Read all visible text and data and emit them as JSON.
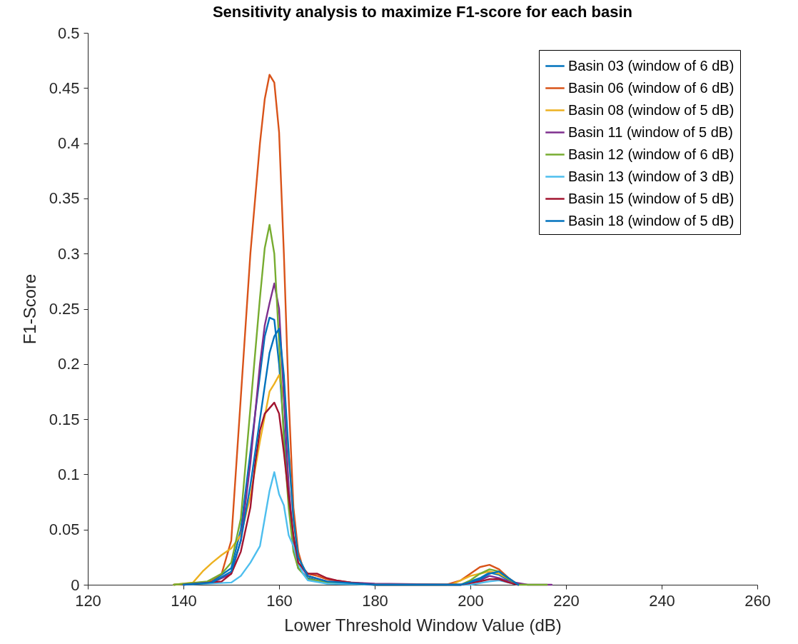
{
  "chart_data": {
    "type": "line",
    "title": "Sensitivity analysis to maximize F1-score for each basin",
    "xlabel": "Lower Threshold Window Value (dB)",
    "ylabel": "F1-Score",
    "xlim": [
      120,
      260
    ],
    "xticks": [
      120,
      140,
      160,
      180,
      200,
      220,
      240,
      260
    ],
    "ylim": [
      0,
      0.5
    ],
    "yticks": [
      0,
      0.05,
      0.1,
      0.15,
      0.2,
      0.25,
      0.3,
      0.35,
      0.4,
      0.45,
      0.5
    ],
    "grid": false,
    "legend": "top right",
    "marker": "none",
    "line_style": "solid",
    "series": [
      {
        "name": "Basin 03 (window of 6 dB)",
        "color": "#0072bd",
        "x": [
          138,
          146,
          150,
          152,
          154,
          156,
          157,
          158,
          159,
          160,
          161,
          162,
          163,
          164,
          166,
          170,
          180,
          198,
          202,
          204,
          206,
          208,
          210
        ],
        "values": [
          0,
          0.003,
          0.015,
          0.05,
          0.12,
          0.19,
          0.225,
          0.242,
          0.24,
          0.2,
          0.14,
          0.08,
          0.035,
          0.015,
          0.006,
          0.002,
          0,
          0,
          0.006,
          0.011,
          0.009,
          0.004,
          0
        ]
      },
      {
        "name": "Basin 06 (window of 6 dB)",
        "color": "#d95319",
        "x": [
          138,
          145,
          148,
          150,
          152,
          154,
          156,
          157,
          158,
          159,
          160,
          161,
          162,
          163,
          164,
          165,
          166,
          168,
          170,
          175,
          180,
          185,
          195,
          198,
          200,
          202,
          204,
          206,
          208,
          210
        ],
        "values": [
          0,
          0.002,
          0.01,
          0.04,
          0.17,
          0.3,
          0.4,
          0.44,
          0.462,
          0.455,
          0.41,
          0.3,
          0.17,
          0.07,
          0.03,
          0.015,
          0.01,
          0.008,
          0.005,
          0.002,
          0,
          0,
          0,
          0.004,
          0.01,
          0.016,
          0.018,
          0.014,
          0.006,
          0
        ]
      },
      {
        "name": "Basin 08 (window of 5 dB)",
        "color": "#edb120",
        "x": [
          138,
          142,
          144,
          146,
          148,
          150,
          152,
          154,
          156,
          158,
          159,
          160,
          161,
          162,
          163,
          164,
          166,
          170,
          180,
          187,
          196,
          198,
          200,
          202,
          204,
          206,
          208,
          210
        ],
        "values": [
          0,
          0.002,
          0.012,
          0.02,
          0.027,
          0.033,
          0.045,
          0.08,
          0.13,
          0.175,
          0.182,
          0.19,
          0.17,
          0.12,
          0.06,
          0.025,
          0.008,
          0.002,
          0,
          0,
          0,
          0.004,
          0.008,
          0.01,
          0.012,
          0.01,
          0.005,
          0
        ]
      },
      {
        "name": "Basin 11 (window of 5 dB)",
        "color": "#7e2f8e",
        "x": [
          140,
          146,
          150,
          152,
          154,
          156,
          157,
          158,
          159,
          160,
          161,
          162,
          163,
          164,
          166,
          170,
          180,
          198,
          202,
          204,
          206,
          208,
          212,
          217
        ],
        "values": [
          0,
          0.002,
          0.01,
          0.04,
          0.11,
          0.2,
          0.235,
          0.255,
          0.273,
          0.25,
          0.17,
          0.09,
          0.04,
          0.02,
          0.008,
          0.003,
          0.001,
          0,
          0.004,
          0.008,
          0.006,
          0.003,
          0,
          0
        ]
      },
      {
        "name": "Basin 12 (window of 6 dB)",
        "color": "#77ac30",
        "x": [
          138,
          145,
          148,
          150,
          152,
          154,
          156,
          157,
          158,
          159,
          160,
          161,
          162,
          163,
          164,
          166,
          170,
          180,
          198,
          200,
          202,
          204,
          206,
          208,
          210,
          216
        ],
        "values": [
          0,
          0.003,
          0.01,
          0.02,
          0.06,
          0.16,
          0.26,
          0.305,
          0.326,
          0.3,
          0.22,
          0.13,
          0.07,
          0.03,
          0.015,
          0.005,
          0.002,
          0,
          0,
          0.004,
          0.01,
          0.014,
          0.012,
          0.005,
          0,
          0
        ]
      },
      {
        "name": "Basin 13 (window of 3 dB)",
        "color": "#4dbeee",
        "x": [
          140,
          150,
          152,
          154,
          156,
          157,
          158,
          159,
          160,
          161,
          162,
          163,
          164,
          165,
          166,
          170,
          180,
          200,
          204,
          206,
          208,
          210
        ],
        "values": [
          0,
          0.002,
          0.008,
          0.02,
          0.035,
          0.06,
          0.085,
          0.102,
          0.082,
          0.072,
          0.045,
          0.035,
          0.02,
          0.01,
          0.004,
          0.001,
          0,
          0,
          0.003,
          0.004,
          0.002,
          0
        ]
      },
      {
        "name": "Basin 15 (window of 5 dB)",
        "color": "#a2142f",
        "x": [
          140,
          148,
          150,
          152,
          154,
          155,
          156,
          157,
          158,
          159,
          160,
          161,
          162,
          163,
          164,
          166,
          168,
          170,
          172,
          175,
          180,
          198,
          202,
          204,
          206,
          208,
          210
        ],
        "values": [
          0,
          0.003,
          0.01,
          0.03,
          0.07,
          0.11,
          0.14,
          0.155,
          0.16,
          0.165,
          0.155,
          0.12,
          0.08,
          0.045,
          0.02,
          0.01,
          0.01,
          0.006,
          0.004,
          0.002,
          0,
          0,
          0.003,
          0.005,
          0.005,
          0.002,
          0
        ]
      },
      {
        "name": "Basin 18 (window of 5 dB)",
        "color": "#0072bd",
        "x": [
          140,
          146,
          150,
          152,
          154,
          156,
          158,
          159,
          160,
          161,
          162,
          163,
          164,
          166,
          170,
          180,
          198,
          202,
          204,
          206,
          208,
          210
        ],
        "values": [
          0,
          0.002,
          0.012,
          0.04,
          0.09,
          0.15,
          0.21,
          0.225,
          0.232,
          0.19,
          0.12,
          0.06,
          0.025,
          0.008,
          0.003,
          0,
          0,
          0.005,
          0.01,
          0.012,
          0.006,
          0
        ]
      }
    ]
  }
}
